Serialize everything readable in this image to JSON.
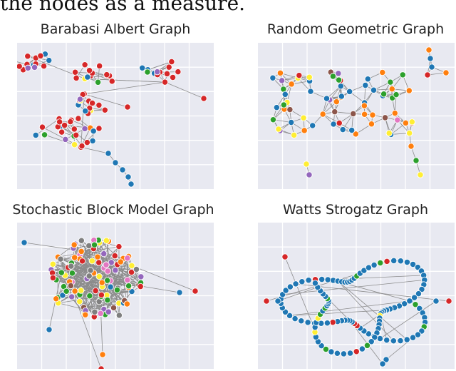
{
  "header": {
    "text": "the nodes as a measure."
  },
  "panels": [
    {
      "title": "Barabasi Albert Graph"
    },
    {
      "title": "Random Geometric Graph"
    },
    {
      "title": "Stochastic Block Model Graph"
    },
    {
      "title": "Watts Strogatz Graph"
    }
  ],
  "colors": {
    "background": "#e8e9f1",
    "grid": "#ffffff",
    "edge": "#8c8c8c",
    "node_palette": [
      "#d62728",
      "#1f77b4",
      "#2ca02c",
      "#ff7f0e",
      "#9467bd",
      "#8c564b",
      "#e377c2",
      "#7f7f7f",
      "#ffee33"
    ]
  }
}
